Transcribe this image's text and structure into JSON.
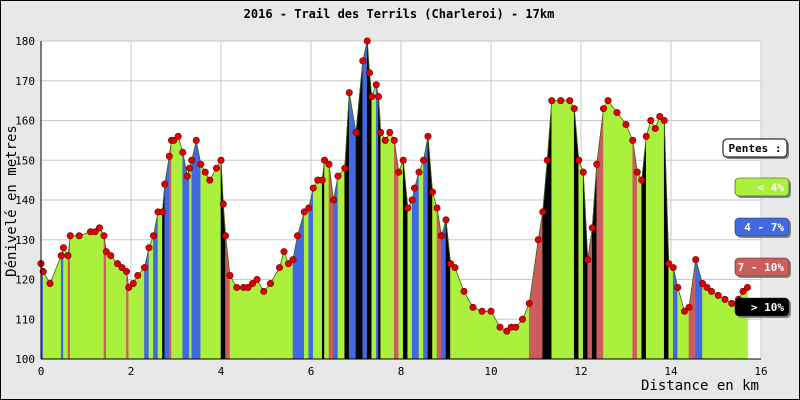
{
  "chart_data": {
    "type": "area",
    "title": "2016 - Trail des Terrils (Charleroi) - 17km",
    "xlabel": "Distance en km",
    "ylabel": "Dénivelé en metres",
    "xlim": [
      0,
      16
    ],
    "ylim": [
      100,
      180
    ],
    "xticks": [
      0,
      2,
      4,
      6,
      8,
      10,
      12,
      14,
      16
    ],
    "yticks": [
      100,
      110,
      120,
      130,
      140,
      150,
      160,
      170,
      180
    ],
    "grid": true,
    "legend": {
      "title": "Pentes :",
      "placement": "right",
      "items": [
        {
          "label": "< 4%",
          "color": "#aaf03c",
          "text_color": "#ffffff"
        },
        {
          "label": "4 - 7%",
          "color": "#4169e1",
          "text_color": "#ffffff"
        },
        {
          "label": "7 - 10%",
          "color": "#cd5c5c",
          "text_color": "#ffffff"
        },
        {
          "label": "> 10%",
          "color": "#000000",
          "text_color": "#ffffff"
        }
      ]
    },
    "colors": {
      "gentle": "#aaf03c",
      "moderate": "#4169e1",
      "steep": "#cd5c5c",
      "very_steep": "#000000",
      "point": "#e00000"
    },
    "x": [
      0.0,
      0.05,
      0.2,
      0.45,
      0.5,
      0.6,
      0.65,
      0.85,
      1.1,
      1.2,
      1.3,
      1.4,
      1.45,
      1.55,
      1.7,
      1.8,
      1.9,
      1.95,
      2.05,
      2.15,
      2.3,
      2.4,
      2.5,
      2.6,
      2.7,
      2.75,
      2.85,
      2.9,
      2.95,
      3.05,
      3.15,
      3.25,
      3.3,
      3.35,
      3.45,
      3.55,
      3.65,
      3.75,
      3.9,
      4.0,
      4.05,
      4.1,
      4.2,
      4.35,
      4.5,
      4.6,
      4.7,
      4.8,
      4.95,
      5.1,
      5.3,
      5.4,
      5.5,
      5.6,
      5.7,
      5.85,
      5.95,
      6.05,
      6.15,
      6.25,
      6.3,
      6.4,
      6.5,
      6.6,
      6.75,
      6.85,
      7.0,
      7.15,
      7.25,
      7.3,
      7.35,
      7.45,
      7.5,
      7.55,
      7.65,
      7.75,
      7.85,
      7.95,
      8.05,
      8.15,
      8.25,
      8.3,
      8.4,
      8.5,
      8.6,
      8.7,
      8.8,
      8.9,
      9.0,
      9.1,
      9.2,
      9.4,
      9.6,
      9.8,
      10.0,
      10.2,
      10.35,
      10.45,
      10.55,
      10.7,
      10.85,
      11.05,
      11.15,
      11.25,
      11.35,
      11.55,
      11.75,
      11.85,
      11.95,
      12.05,
      12.15,
      12.25,
      12.35,
      12.5,
      12.6,
      12.8,
      13.0,
      13.15,
      13.25,
      13.35,
      13.45,
      13.55,
      13.65,
      13.75,
      13.85,
      13.95,
      14.05,
      14.15,
      14.3,
      14.4,
      14.55,
      14.7,
      14.8,
      14.9,
      15.05,
      15.2,
      15.35,
      15.5,
      15.6,
      15.7
    ],
    "y": [
      124,
      122,
      119,
      126,
      128,
      126,
      131,
      131,
      132,
      132,
      133,
      131,
      127,
      126,
      124,
      123,
      122,
      118,
      119,
      121,
      123,
      128,
      131,
      137,
      137,
      144,
      151,
      155,
      155,
      156,
      152,
      146,
      148,
      150,
      155,
      149,
      147,
      145,
      148,
      150,
      139,
      131,
      121,
      118,
      118,
      118,
      119,
      120,
      117,
      119,
      123,
      127,
      124,
      125,
      131,
      137,
      138,
      143,
      145,
      145,
      150,
      149,
      140,
      146,
      148,
      167,
      157,
      175,
      180,
      172,
      166,
      169,
      166,
      157,
      155,
      157,
      155,
      147,
      150,
      138,
      140,
      143,
      147,
      150,
      156,
      142,
      138,
      131,
      135,
      124,
      123,
      117,
      113,
      112,
      112,
      108,
      107,
      108,
      108,
      110,
      114,
      130,
      137,
      150,
      165,
      165,
      165,
      163,
      150,
      147,
      125,
      133,
      149,
      163,
      165,
      162,
      159,
      155,
      147,
      145,
      156,
      160,
      158,
      161,
      160,
      124,
      123,
      118,
      112,
      113,
      125,
      119,
      118,
      117,
      116,
      115,
      114,
      115,
      117,
      118
    ]
  }
}
